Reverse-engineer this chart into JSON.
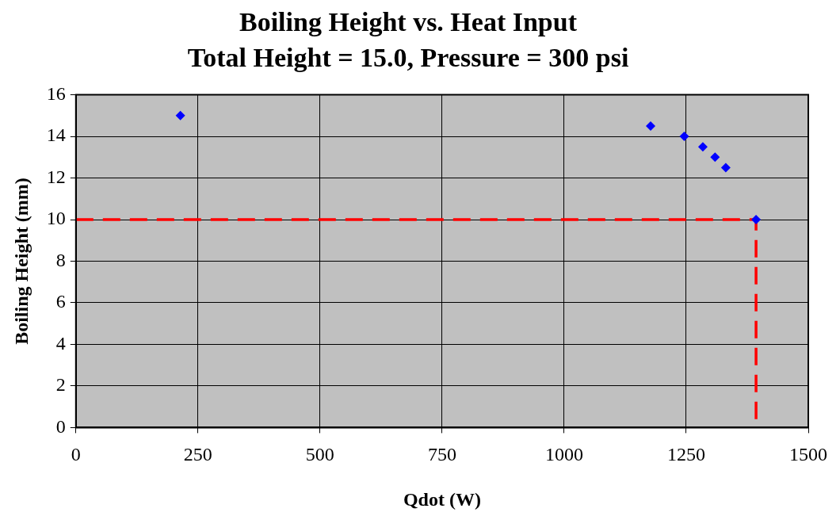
{
  "chart_data": {
    "type": "scatter",
    "title": "Boiling Height vs. Heat Input",
    "subtitle": "Total Height = 15.0, Pressure = 300 psi",
    "xlabel": "Qdot (W)",
    "ylabel": "Boiling Height (mm)",
    "xlim": [
      0,
      1500
    ],
    "xticks": [
      0,
      250,
      500,
      750,
      1000,
      1250,
      1500
    ],
    "ylim": [
      0,
      16
    ],
    "yticks": [
      0,
      2,
      4,
      6,
      8,
      10,
      12,
      14,
      16
    ],
    "grid": true,
    "legend": false,
    "series": [
      {
        "type": "scatter",
        "color": "#0000ff",
        "marker": "diamond",
        "x": [
          214,
          1177,
          1246,
          1284,
          1309,
          1331,
          1393
        ],
        "values": [
          15,
          14.5,
          14,
          13.5,
          13,
          12.5,
          10
        ]
      },
      {
        "type": "line",
        "color": "#ff0000",
        "marker": "none",
        "line_style": "dashed",
        "x": [
          0,
          1393,
          1393
        ],
        "values": [
          10,
          10,
          0
        ]
      }
    ]
  }
}
